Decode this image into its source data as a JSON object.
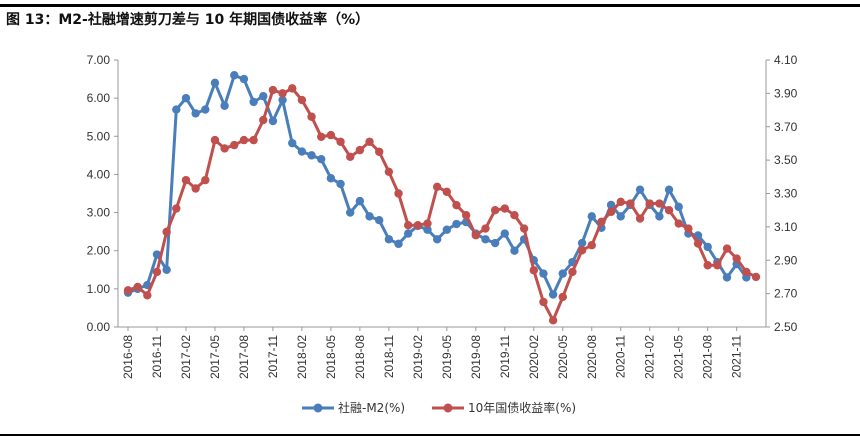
{
  "title": "图 13：M2-社融增速剪刀差与 10 年期国债收益率（%）",
  "chart_data": {
    "type": "line",
    "x": [
      "2016-08",
      "2016-09",
      "2016-10",
      "2016-11",
      "2016-12",
      "2017-01",
      "2017-02",
      "2017-03",
      "2017-04",
      "2017-05",
      "2017-06",
      "2017-07",
      "2017-08",
      "2017-09",
      "2017-10",
      "2017-11",
      "2017-12",
      "2018-01",
      "2018-02",
      "2018-03",
      "2018-04",
      "2018-05",
      "2018-06",
      "2018-07",
      "2018-08",
      "2018-09",
      "2018-10",
      "2018-11",
      "2018-12",
      "2019-01",
      "2019-02",
      "2019-03",
      "2019-04",
      "2019-05",
      "2019-06",
      "2019-07",
      "2019-08",
      "2019-09",
      "2019-10",
      "2019-11",
      "2019-12",
      "2020-01",
      "2020-02",
      "2020-03",
      "2020-04",
      "2020-05",
      "2020-06",
      "2020-07",
      "2020-08",
      "2020-09",
      "2020-10",
      "2020-11",
      "2020-12",
      "2021-01",
      "2021-02",
      "2021-03",
      "2021-04",
      "2021-05",
      "2021-06",
      "2021-07",
      "2021-08",
      "2021-09",
      "2021-10",
      "2021-11",
      "2021-12",
      "2022-01"
    ],
    "x_tick_labels": [
      "2016-08",
      "2016-11",
      "2017-02",
      "2017-05",
      "2017-08",
      "2017-11",
      "2018-02",
      "2018-05",
      "2018-08",
      "2018-11",
      "2019-02",
      "2019-05",
      "2019-08",
      "2019-11",
      "2020-02",
      "2020-05",
      "2020-08",
      "2020-11",
      "2021-02",
      "2021-05",
      "2021-08",
      "2021-11"
    ],
    "series": [
      {
        "name": "社融-M2(%)",
        "axis": "left",
        "color": "#4a7ebb",
        "values": [
          0.9,
          1.0,
          1.1,
          1.9,
          1.5,
          5.7,
          6.0,
          5.6,
          5.7,
          6.4,
          5.8,
          6.6,
          6.5,
          5.9,
          6.05,
          5.4,
          5.95,
          4.82,
          4.6,
          4.5,
          4.4,
          3.9,
          3.75,
          3.0,
          3.3,
          2.9,
          2.8,
          2.3,
          2.18,
          2.45,
          2.65,
          2.55,
          2.3,
          2.55,
          2.7,
          2.75,
          2.45,
          2.3,
          2.2,
          2.45,
          2.0,
          2.3,
          1.75,
          1.4,
          0.85,
          1.4,
          1.7,
          2.2,
          2.9,
          2.6,
          3.2,
          2.9,
          3.2,
          3.6,
          3.2,
          2.9,
          3.6,
          3.15,
          2.45,
          2.4,
          2.1,
          1.7,
          1.3,
          1.65,
          1.3,
          null
        ]
      },
      {
        "name": "10年国债收益率(%)",
        "axis": "right",
        "color": "#c0504d",
        "values": [
          2.72,
          2.74,
          2.69,
          2.83,
          3.07,
          3.21,
          3.38,
          3.33,
          3.38,
          3.62,
          3.57,
          3.59,
          3.62,
          3.62,
          3.74,
          3.92,
          3.9,
          3.93,
          3.86,
          3.76,
          3.64,
          3.65,
          3.61,
          3.52,
          3.56,
          3.61,
          3.55,
          3.43,
          3.3,
          3.11,
          3.11,
          3.12,
          3.34,
          3.31,
          3.23,
          3.17,
          3.05,
          3.09,
          3.2,
          3.21,
          3.17,
          3.09,
          2.84,
          2.65,
          2.54,
          2.68,
          2.83,
          2.96,
          2.99,
          3.13,
          3.19,
          3.25,
          3.24,
          3.15,
          3.24,
          3.24,
          3.2,
          3.12,
          3.09,
          3.0,
          2.87,
          2.87,
          2.97,
          2.91,
          2.83,
          2.8
        ]
      }
    ],
    "y_left": {
      "min": 0,
      "max": 7,
      "step": 1,
      "tick_labels": [
        "0.00",
        "1.00",
        "2.00",
        "3.00",
        "4.00",
        "5.00",
        "6.00",
        "7.00"
      ]
    },
    "y_right": {
      "min": 2.5,
      "max": 4.1,
      "step": 0.2,
      "tick_labels": [
        "2.50",
        "2.70",
        "2.90",
        "3.10",
        "3.30",
        "3.50",
        "3.70",
        "3.90",
        "4.10"
      ]
    },
    "grid": false,
    "legend_position": "bottom-center"
  }
}
